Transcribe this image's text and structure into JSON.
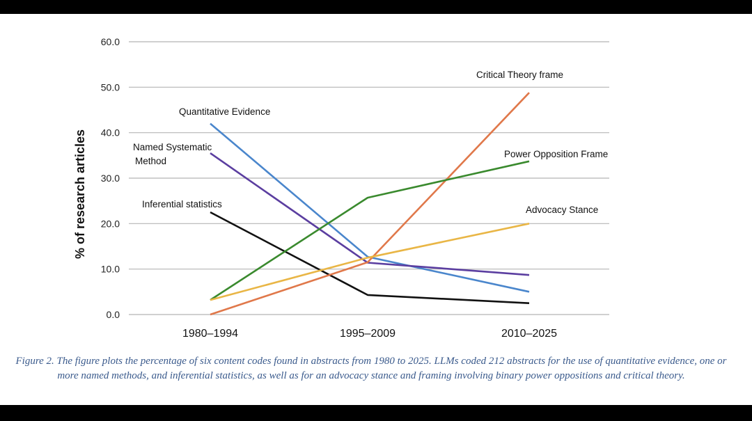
{
  "chart_data": {
    "type": "line",
    "categories": [
      "1980–1994",
      "1995–2009",
      "2010–2025"
    ],
    "ylabel": "% of research articles",
    "ylim": [
      0,
      60
    ],
    "yticks": [
      "0.0",
      "10.0",
      "20.0",
      "30.0",
      "40.0",
      "50.0",
      "60.0"
    ],
    "grid": true,
    "series": [
      {
        "name": "Quantitative Evidence",
        "color": "#4a86cc",
        "values": [
          42.0,
          12.7,
          5.0
        ]
      },
      {
        "name": "Named Systematic Method",
        "label_lines": [
          "Named Systematic",
          "Method"
        ],
        "color": "#5b3ea0",
        "values": [
          35.5,
          11.4,
          8.7
        ]
      },
      {
        "name": "Inferential statistics",
        "color": "#111111",
        "values": [
          22.5,
          4.3,
          2.5
        ]
      },
      {
        "name": "Critical Theory frame",
        "color": "#e0784a",
        "values": [
          0.0,
          11.5,
          48.8
        ]
      },
      {
        "name": "Power Opposition Frame",
        "color": "#3a8a2e",
        "values": [
          3.2,
          25.7,
          33.7
        ]
      },
      {
        "name": "Advocacy Stance",
        "color": "#e9b646",
        "values": [
          3.2,
          12.5,
          20.0
        ]
      }
    ]
  },
  "caption": "Figure 2. The figure plots the percentage of six content codes found in abstracts from 1980 to 2025. LLMs coded 212 abstracts for the use of quantitative evidence, one or more named methods, and inferential statistics, as well as for an advocacy stance and framing involving binary power oppositions and critical theory."
}
